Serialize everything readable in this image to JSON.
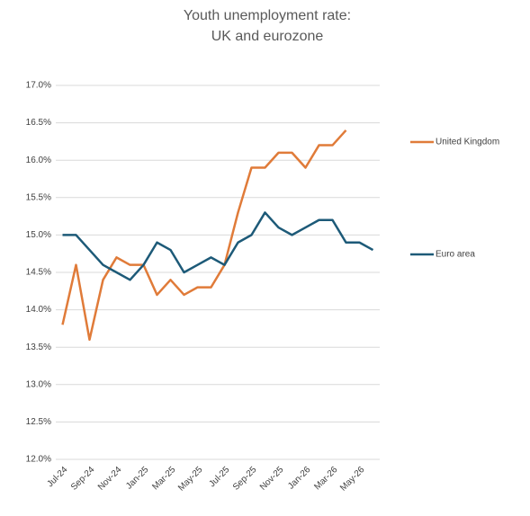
{
  "chart_data": {
    "type": "line",
    "title": [
      "Youth unemployment rate:",
      "UK and eurozone"
    ],
    "categories": [
      "Jul-24",
      null,
      "Sep-24",
      null,
      "Nov-24",
      null,
      "Jan-25",
      null,
      "Mar-25",
      null,
      "May-25",
      null,
      "Jul-25",
      null,
      "Sep-25",
      null,
      "Nov-25",
      null,
      "Jan-26",
      null,
      "Mar-26",
      null,
      "May-26",
      null
    ],
    "series": [
      {
        "name": "United Kingdom",
        "color": "#e07b39",
        "values": [
          13.8,
          14.6,
          13.6,
          14.4,
          14.7,
          14.6,
          14.6,
          14.2,
          14.4,
          14.2,
          14.3,
          14.3,
          14.6,
          15.3,
          15.9,
          15.9,
          16.1,
          16.1,
          15.9,
          16.2,
          16.2,
          16.4,
          null,
          null
        ]
      },
      {
        "name": "Euro area",
        "color": "#1d5a78",
        "values": [
          15.0,
          15.0,
          14.8,
          14.6,
          14.5,
          14.4,
          14.6,
          14.9,
          14.8,
          14.5,
          14.6,
          14.7,
          14.6,
          14.9,
          15.0,
          15.3,
          15.1,
          15.0,
          15.1,
          15.2,
          15.2,
          14.9,
          14.9,
          14.8
        ]
      }
    ],
    "ylim": [
      12,
      17
    ],
    "yticks": [
      {
        "value": 12,
        "label": "12.0%"
      },
      {
        "value": 12.5,
        "label": "12.5%"
      },
      {
        "value": 13,
        "label": "13.0%"
      },
      {
        "value": 13.5,
        "label": "13.5%"
      },
      {
        "value": 14,
        "label": "14.0%"
      },
      {
        "value": 14.5,
        "label": "14.5%"
      },
      {
        "value": 15,
        "label": "15.0%"
      },
      {
        "value": 15.5,
        "label": "15.5%"
      },
      {
        "value": 16,
        "label": "16.0%"
      },
      {
        "value": 16.5,
        "label": "16.5%"
      },
      {
        "value": 17,
        "label": "17.0%"
      }
    ],
    "grid": true,
    "legend": "right"
  }
}
